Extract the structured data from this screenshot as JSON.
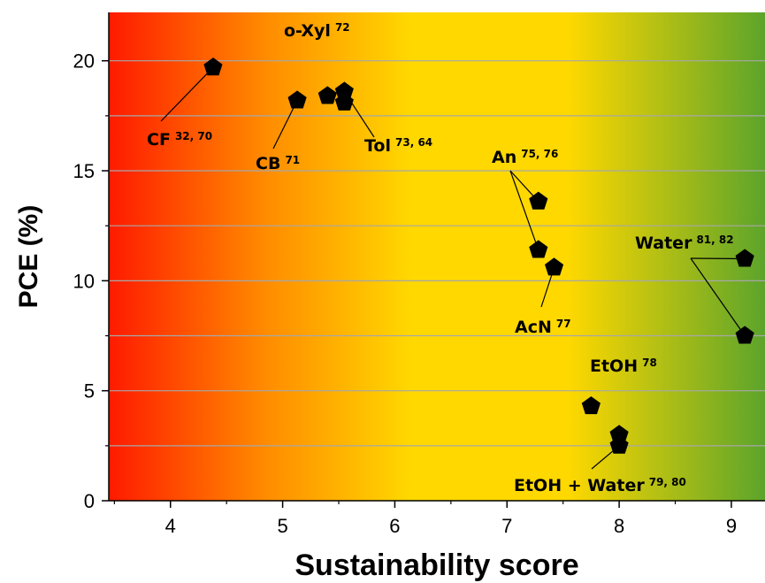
{
  "chart_data": {
    "type": "scatter",
    "xlabel": "Sustainability score",
    "ylabel": "PCE (%)",
    "xlim": [
      3.45,
      9.3
    ],
    "ylim": [
      0,
      22.2
    ],
    "xticks": [
      4,
      5,
      6,
      7,
      8,
      9
    ],
    "yticks": [
      0,
      5,
      10,
      15,
      20
    ],
    "grid": "horizontal",
    "background": "red-to-yellow-to-green gradient (left to right)",
    "colors": {
      "red": "#ff1a00",
      "orange": "#ff8c00",
      "yellow": "#ffd800",
      "green": "#5ca42b",
      "marker": "#000000"
    },
    "marker": "pentagon",
    "points": [
      {
        "x": 4.38,
        "y": 19.7
      },
      {
        "x": 5.13,
        "y": 18.2
      },
      {
        "x": 5.4,
        "y": 18.4
      },
      {
        "x": 5.55,
        "y": 18.6
      },
      {
        "x": 5.55,
        "y": 18.1
      },
      {
        "x": 7.28,
        "y": 13.6
      },
      {
        "x": 7.28,
        "y": 11.4
      },
      {
        "x": 7.42,
        "y": 10.6
      },
      {
        "x": 7.75,
        "y": 4.3
      },
      {
        "x": 8.0,
        "y": 3.0
      },
      {
        "x": 8.0,
        "y": 2.5
      },
      {
        "x": 9.12,
        "y": 11.0
      },
      {
        "x": 9.12,
        "y": 7.5
      }
    ],
    "annotations": [
      {
        "label": "CF",
        "refs": "32, 70"
      },
      {
        "label": "CB",
        "refs": "71"
      },
      {
        "label": "o-Xyl",
        "refs": "72"
      },
      {
        "label": "Tol",
        "refs": "73, 64"
      },
      {
        "label": "An",
        "refs": "75, 76"
      },
      {
        "label": "AcN",
        "refs": "77"
      },
      {
        "label": "Water",
        "refs": "81, 82"
      },
      {
        "label": "EtOH",
        "refs": "78"
      },
      {
        "label": "EtOH + Water",
        "refs": "79, 80"
      }
    ]
  }
}
